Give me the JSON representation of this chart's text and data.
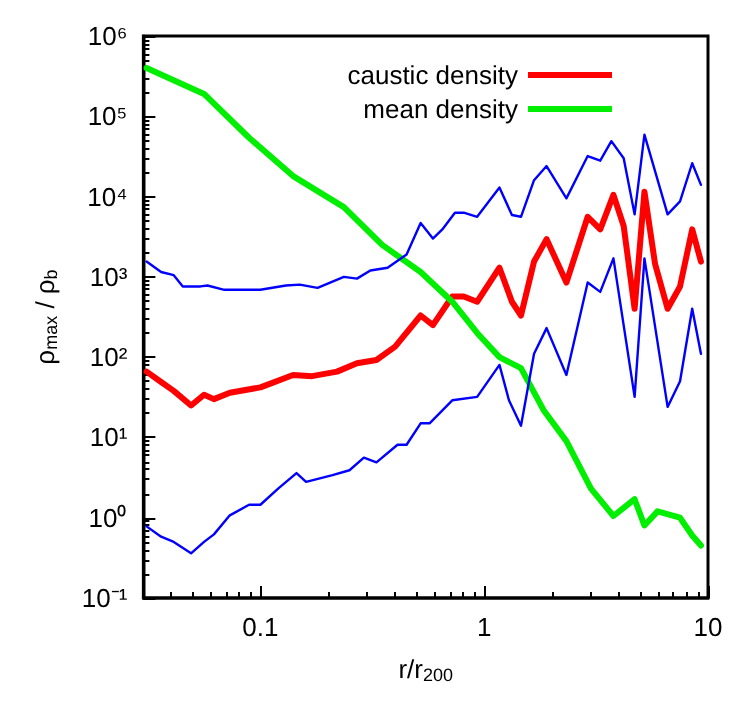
{
  "chart_data": {
    "type": "line",
    "xlabel": "r/r$_{200}$",
    "ylabel": "ρ$_{max}$ / ρ$_{b}$",
    "log": "xy",
    "grid": false,
    "legend": "top right",
    "marker": "none",
    "line_style": "solid",
    "xlim": [
      0.03,
      10
    ],
    "xticks": [
      0.1,
      1,
      10
    ],
    "ylim": [
      0.1,
      1000000
    ],
    "yticks": [
      {
        "value": 0.1,
        "label": "10⁻¹"
      },
      {
        "value": 1,
        "label": "10⁰"
      },
      {
        "value": 10,
        "label": "10¹"
      },
      {
        "value": 100,
        "label": "10²"
      },
      {
        "value": 1000,
        "label": "10³"
      },
      {
        "value": 10000,
        "label": "10⁴"
      },
      {
        "value": 100000,
        "label": "10⁵"
      },
      {
        "value": 1000000,
        "label": "10⁶"
      }
    ],
    "series": [
      {
        "name": "caustic density",
        "color": "#ff0000",
        "x": [
          0.031,
          0.036,
          0.041,
          0.049,
          0.056,
          0.062,
          0.073,
          0.1,
          0.14,
          0.17,
          0.22,
          0.27,
          0.33,
          0.4,
          0.52,
          0.59,
          0.72,
          0.81,
          0.93,
          1.17,
          1.33,
          1.46,
          1.67,
          1.9,
          2.33,
          2.9,
          3.3,
          3.78,
          4.2,
          4.7,
          5.2,
          5.8,
          6.6,
          7.5,
          8.5,
          9.3
        ],
        "values": [
          66,
          49,
          38,
          25,
          34,
          30,
          36,
          42,
          60,
          58,
          66,
          84,
          92,
          135,
          330,
          250,
          570,
          570,
          490,
          1300,
          490,
          330,
          1550,
          2950,
          850,
          5600,
          3900,
          10500,
          4300,
          400,
          11500,
          1450,
          400,
          760,
          3900,
          1550
        ]
      },
      {
        "name": "mean density",
        "color": "#00ee00",
        "x": [
          0.031,
          0.056,
          0.089,
          0.14,
          0.236,
          0.35,
          0.52,
          0.72,
          0.93,
          1.17,
          1.46,
          1.84,
          2.33,
          3.0,
          3.78,
          4.7,
          5.2,
          5.95,
          7.5,
          8.5,
          9.3
        ],
        "values": [
          400000,
          190000,
          54000,
          18000,
          7400,
          2500,
          1150,
          490,
          200,
          100,
          73,
          22,
          9,
          2.3,
          1.05,
          1.7,
          0.8,
          1.2,
          1,
          0.6,
          0.45
        ]
      },
      {
        "color": "#0000ff",
        "x": [
          0.031,
          0.036,
          0.041,
          0.045,
          0.054,
          0.058,
          0.069,
          0.1,
          0.13,
          0.15,
          0.18,
          0.236,
          0.27,
          0.31,
          0.37,
          0.45,
          0.52,
          0.59,
          0.65,
          0.74,
          0.81,
          0.93,
          1.17,
          1.33,
          1.46,
          1.67,
          1.9,
          2.33,
          2.9,
          3.3,
          3.7,
          4.2,
          4.7,
          5.2,
          6.6,
          7.5,
          8.5,
          9.3
        ],
        "values": [
          1550,
          1150,
          1050,
          760,
          760,
          780,
          690,
          690,
          780,
          800,
          730,
          1000,
          950,
          1200,
          1300,
          1900,
          4700,
          3000,
          3900,
          6300,
          6300,
          5600,
          13000,
          5900,
          5600,
          16000,
          24000,
          9500,
          32000,
          28000,
          49000,
          30000,
          6000,
          59000,
          6000,
          8700,
          26000,
          14000
        ]
      },
      {
        "color": "#0000ff",
        "x": [
          0.031,
          0.036,
          0.041,
          0.049,
          0.056,
          0.062,
          0.073,
          0.089,
          0.1,
          0.12,
          0.145,
          0.16,
          0.21,
          0.25,
          0.29,
          0.33,
          0.41,
          0.45,
          0.52,
          0.57,
          0.72,
          0.93,
          1.17,
          1.29,
          1.46,
          1.67,
          1.9,
          2.33,
          2.9,
          3.3,
          3.78,
          4.7,
          5.2,
          6.6,
          7.5,
          8.5,
          9.3
        ],
        "values": [
          0.78,
          0.58,
          0.5,
          0.36,
          0.5,
          0.62,
          1.07,
          1.45,
          1.45,
          2.3,
          3.6,
          2.8,
          3.4,
          3.9,
          5.6,
          4.9,
          8.1,
          8.1,
          15,
          15,
          29,
          32,
          80,
          29,
          14,
          110,
          230,
          60,
          850,
          650,
          1700,
          32,
          1700,
          24,
          50,
          400,
          110
        ]
      }
    ]
  }
}
